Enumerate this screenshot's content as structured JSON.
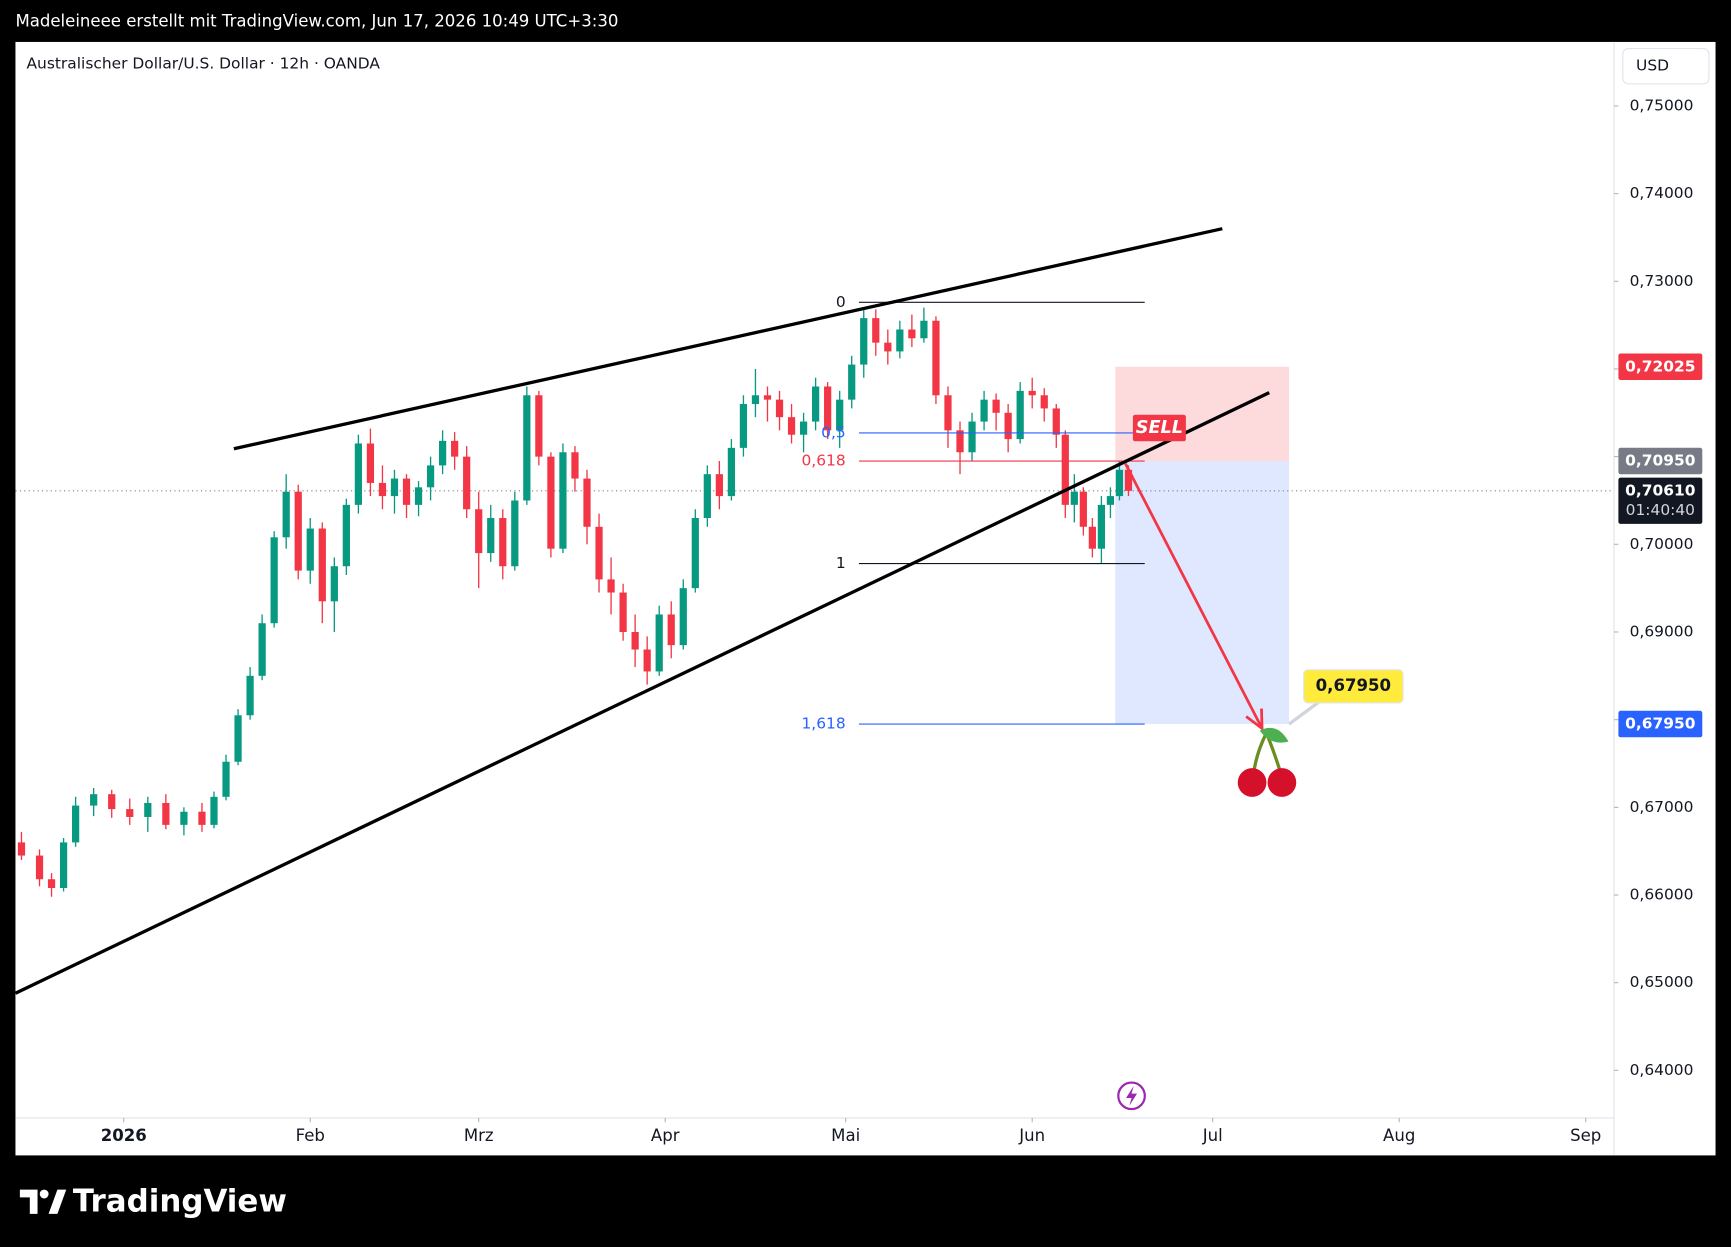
{
  "header": {
    "attribution": "Madeleineee erstellt mit TradingView.com, Jun 17, 2026 10:49 UTC+3:30"
  },
  "footer": {
    "brand": "TradingView"
  },
  "chart_data": {
    "type": "candlestick",
    "title": "Australischer Dollar/U.S. Dollar · 12h · OANDA",
    "price_axis_unit": "USD",
    "up_color": "#089981",
    "down_color": "#f23645",
    "grid": false,
    "xlim": [
      -17,
      248.7
    ],
    "ylim": [
      0.6303,
      0.7573
    ],
    "xticks": [
      {
        "value": 1,
        "label": "2026"
      },
      {
        "value": 32,
        "label": "Feb"
      },
      {
        "value": 60,
        "label": "Mrz"
      },
      {
        "value": 91,
        "label": "Apr"
      },
      {
        "value": 121,
        "label": "Mai"
      },
      {
        "value": 152,
        "label": "Jun"
      },
      {
        "value": 182,
        "label": "Jul"
      },
      {
        "value": 213,
        "label": "Aug"
      },
      {
        "value": 244,
        "label": "Sep"
      }
    ],
    "yticks": [
      {
        "value": 0.64,
        "label": "0,64000"
      },
      {
        "value": 0.65,
        "label": "0,65000"
      },
      {
        "value": 0.66,
        "label": "0,66000"
      },
      {
        "value": 0.67,
        "label": "0,67000"
      },
      {
        "value": 0.68,
        "label": "0,68000"
      },
      {
        "value": 0.69,
        "label": "0,69000"
      },
      {
        "value": 0.7,
        "label": "0,70000"
      },
      {
        "value": 0.71,
        "label": "0,71000"
      },
      {
        "value": 0.72,
        "label": "0,72000"
      },
      {
        "value": 0.73,
        "label": "0,73000"
      },
      {
        "value": 0.74,
        "label": "0,74000"
      },
      {
        "value": 0.75,
        "label": "0,75000"
      }
    ],
    "candles": {
      "x": [
        -16,
        -13,
        -11,
        -9,
        -7,
        -4,
        -1,
        2,
        5,
        8,
        11,
        14,
        16,
        18,
        20,
        22,
        24,
        26,
        28,
        30,
        32,
        34,
        36,
        38,
        40,
        42,
        44,
        46,
        48,
        50,
        52,
        54,
        56,
        58,
        60,
        62,
        64,
        66,
        68,
        70,
        72,
        74,
        76,
        78,
        80,
        82,
        84,
        86,
        88,
        90,
        92,
        94,
        96,
        98,
        100,
        102,
        104,
        106,
        108,
        110,
        112,
        114,
        116,
        118,
        120,
        122,
        124,
        126,
        128,
        130,
        132,
        134,
        136,
        138,
        140,
        142,
        144,
        146,
        148,
        150,
        152,
        154,
        156,
        157.5,
        159,
        160.5,
        162,
        163.5,
        165,
        166.5,
        168
      ],
      "open": [
        0.666,
        0.6645,
        0.6618,
        0.6608,
        0.666,
        0.6702,
        0.6715,
        0.6698,
        0.6689,
        0.6705,
        0.668,
        0.6695,
        0.668,
        0.6712,
        0.6752,
        0.6805,
        0.685,
        0.691,
        0.7008,
        0.706,
        0.697,
        0.7018,
        0.6935,
        0.6975,
        0.7045,
        0.7115,
        0.707,
        0.7055,
        0.7075,
        0.7045,
        0.7065,
        0.709,
        0.7118,
        0.71,
        0.704,
        0.699,
        0.703,
        0.6975,
        0.705,
        0.717,
        0.71,
        0.6995,
        0.7105,
        0.7075,
        0.702,
        0.696,
        0.6945,
        0.69,
        0.688,
        0.6855,
        0.692,
        0.6885,
        0.695,
        0.703,
        0.708,
        0.7055,
        0.711,
        0.716,
        0.717,
        0.7165,
        0.7145,
        0.7125,
        0.714,
        0.718,
        0.713,
        0.7165,
        0.7205,
        0.7258,
        0.723,
        0.722,
        0.7245,
        0.7235,
        0.7255,
        0.717,
        0.713,
        0.7105,
        0.714,
        0.7165,
        0.715,
        0.712,
        0.7175,
        0.717,
        0.7155,
        0.7125,
        0.7045,
        0.706,
        0.702,
        0.6995,
        0.7045,
        0.7055,
        0.7085
      ],
      "high": [
        0.6672,
        0.6652,
        0.6625,
        0.6665,
        0.6712,
        0.6722,
        0.672,
        0.671,
        0.6712,
        0.6715,
        0.67,
        0.6705,
        0.6718,
        0.676,
        0.6812,
        0.686,
        0.692,
        0.7015,
        0.708,
        0.7068,
        0.703,
        0.7025,
        0.6985,
        0.7052,
        0.7125,
        0.7132,
        0.709,
        0.7085,
        0.708,
        0.7072,
        0.71,
        0.713,
        0.7128,
        0.7112,
        0.706,
        0.7045,
        0.704,
        0.706,
        0.718,
        0.7175,
        0.7105,
        0.7115,
        0.7112,
        0.7085,
        0.7035,
        0.6985,
        0.6955,
        0.692,
        0.6895,
        0.693,
        0.6935,
        0.696,
        0.704,
        0.709,
        0.7095,
        0.712,
        0.717,
        0.72,
        0.718,
        0.7175,
        0.716,
        0.715,
        0.719,
        0.7185,
        0.7175,
        0.7215,
        0.727,
        0.7268,
        0.7245,
        0.7255,
        0.7262,
        0.727,
        0.726,
        0.718,
        0.714,
        0.715,
        0.7175,
        0.7172,
        0.716,
        0.7185,
        0.719,
        0.7178,
        0.716,
        0.713,
        0.708,
        0.7065,
        0.703,
        0.7055,
        0.7065,
        0.7095,
        0.709
      ],
      "low": [
        0.664,
        0.661,
        0.6598,
        0.6604,
        0.6655,
        0.669,
        0.6688,
        0.668,
        0.6672,
        0.6675,
        0.6668,
        0.6672,
        0.6676,
        0.6708,
        0.6748,
        0.68,
        0.6845,
        0.6905,
        0.6995,
        0.696,
        0.6955,
        0.691,
        0.69,
        0.6965,
        0.7035,
        0.7055,
        0.704,
        0.7035,
        0.703,
        0.7032,
        0.705,
        0.708,
        0.7085,
        0.703,
        0.695,
        0.698,
        0.696,
        0.697,
        0.7045,
        0.709,
        0.6985,
        0.699,
        0.706,
        0.7,
        0.6945,
        0.692,
        0.689,
        0.686,
        0.684,
        0.685,
        0.687,
        0.688,
        0.6945,
        0.702,
        0.704,
        0.705,
        0.71,
        0.7145,
        0.714,
        0.713,
        0.7115,
        0.7105,
        0.713,
        0.712,
        0.711,
        0.7155,
        0.719,
        0.7215,
        0.7205,
        0.7212,
        0.7225,
        0.723,
        0.716,
        0.711,
        0.708,
        0.7095,
        0.713,
        0.713,
        0.7105,
        0.7115,
        0.7155,
        0.714,
        0.711,
        0.703,
        0.7025,
        0.701,
        0.6985,
        0.6978,
        0.703,
        0.705,
        0.7055
      ],
      "close": [
        0.6645,
        0.6618,
        0.6608,
        0.666,
        0.6702,
        0.6715,
        0.6698,
        0.6689,
        0.6705,
        0.668,
        0.6695,
        0.668,
        0.6712,
        0.6752,
        0.6805,
        0.685,
        0.691,
        0.7008,
        0.706,
        0.697,
        0.7018,
        0.6935,
        0.6975,
        0.7045,
        0.7115,
        0.707,
        0.7055,
        0.7075,
        0.7045,
        0.7065,
        0.709,
        0.7118,
        0.71,
        0.704,
        0.699,
        0.703,
        0.6975,
        0.705,
        0.717,
        0.71,
        0.6995,
        0.7105,
        0.7075,
        0.702,
        0.696,
        0.6945,
        0.69,
        0.688,
        0.6855,
        0.692,
        0.6885,
        0.695,
        0.703,
        0.708,
        0.7055,
        0.711,
        0.716,
        0.717,
        0.7165,
        0.7145,
        0.7125,
        0.714,
        0.718,
        0.713,
        0.7165,
        0.7205,
        0.7258,
        0.723,
        0.722,
        0.7245,
        0.7235,
        0.7255,
        0.717,
        0.713,
        0.7105,
        0.714,
        0.7165,
        0.715,
        0.712,
        0.7175,
        0.717,
        0.7155,
        0.7125,
        0.7045,
        0.706,
        0.702,
        0.6995,
        0.7045,
        0.7055,
        0.7085,
        0.7061
      ]
    },
    "trendlines": [
      {
        "x": [
          19.3,
          183.6
        ],
        "y": [
          0.7109,
          0.736
        ],
        "color": "#000000"
      },
      {
        "x": [
          -17,
          191.4
        ],
        "y": [
          0.6488,
          0.7173
        ],
        "color": "#000000"
      }
    ],
    "fib": {
      "x": [
        123.2,
        170.7
      ],
      "levels": [
        {
          "label": "0",
          "value": 0.7276,
          "color": "#131722"
        },
        {
          "label": "0,5",
          "value": 0.7127,
          "color": "#2962ff"
        },
        {
          "label": "0,618",
          "value": 0.7095,
          "color": "#f23645"
        },
        {
          "label": "1",
          "value": 0.6978,
          "color": "#131722"
        },
        {
          "label": "1,618",
          "value": 0.6795,
          "color": "#2962ff"
        }
      ]
    },
    "position": {
      "x": [
        165.8,
        194.7
      ],
      "stop": 0.72025,
      "entry": 0.7095,
      "target": 0.6795,
      "label": "SELL"
    },
    "arrow": {
      "x": [
        167.5,
        190.2
      ],
      "y": [
        0.7092,
        0.679
      ],
      "color": "#f23645"
    },
    "callout": {
      "x": 205.2,
      "y": 0.6838,
      "value": 0.6795,
      "label": "0,67950"
    },
    "current_price": {
      "value": 0.7061,
      "label": "0,70610",
      "countdown": "01:40:40"
    },
    "price_labels": [
      {
        "value": 0.72025,
        "label": "0,72025",
        "color": "#f23645"
      },
      {
        "value": 0.7095,
        "label": "0,70950",
        "color": "#787b86"
      },
      {
        "value": 0.6795,
        "label": "0,67950",
        "color": "#2962ff"
      }
    ]
  }
}
